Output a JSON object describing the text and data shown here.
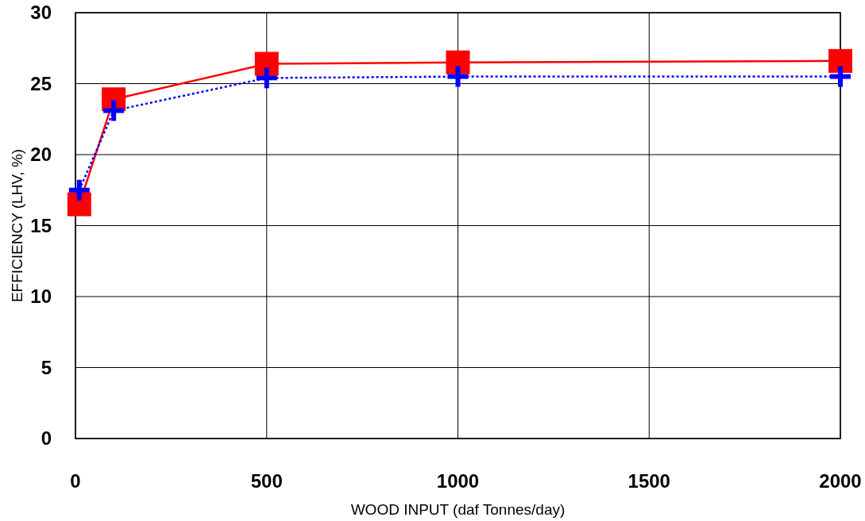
{
  "chart_data": {
    "type": "line",
    "xlabel": "WOOD INPUT (daf Tonnes/day)",
    "ylabel": "EFFICIENCY  (LHV, %)",
    "xlim": [
      0,
      2000
    ],
    "xticks": [
      0,
      500,
      1000,
      1500,
      2000
    ],
    "ylim": [
      0,
      30
    ],
    "yticks": [
      0,
      5,
      10,
      15,
      20,
      25,
      30
    ],
    "grid": true,
    "series": [
      {
        "color": "#ff0000",
        "marker": "square",
        "line_style": "solid",
        "x": [
          10,
          100,
          500,
          1000,
          2000
        ],
        "values": [
          16.5,
          23.9,
          26.4,
          26.5,
          26.6
        ]
      },
      {
        "color": "#0000ff",
        "marker": "cross",
        "line_style": "dotted",
        "x": [
          10,
          100,
          500,
          1000,
          2000
        ],
        "values": [
          17.5,
          23.1,
          25.4,
          25.5,
          25.5
        ]
      }
    ]
  }
}
